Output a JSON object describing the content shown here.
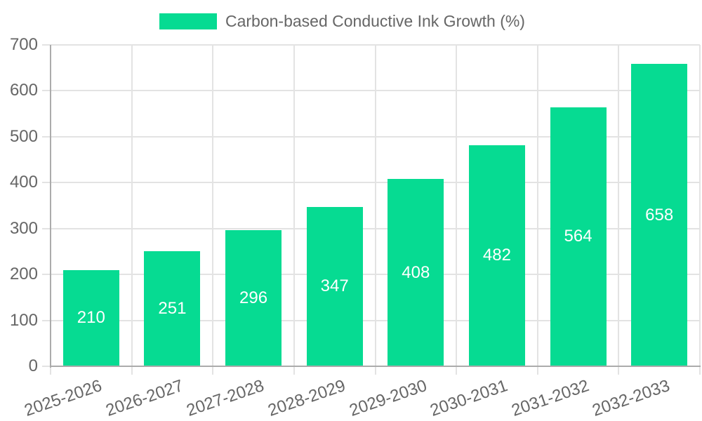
{
  "legend": {
    "label": "Carbon-based Conductive Ink Growth (%)"
  },
  "chart_data": {
    "type": "bar",
    "title": "Carbon-based Conductive Ink Growth (%)",
    "categories": [
      "2025-2026",
      "2026-2027",
      "2027-2028",
      "2028-2029",
      "2029-2030",
      "2030-2031",
      "2031-2032",
      "2032-2033"
    ],
    "values": [
      210,
      251,
      296,
      347,
      408,
      482,
      564,
      658
    ],
    "xlabel": "",
    "ylabel": "",
    "ylim": [
      0,
      700
    ],
    "yticks": [
      0,
      100,
      200,
      300,
      400,
      500,
      600,
      700
    ],
    "grid": true,
    "legend_position": "top",
    "value_labels_inside_bars": true,
    "bar_color": "#06db92",
    "value_label_color": "#ffffff",
    "axis_text_color": "#666666",
    "grid_color": "#e3e3e3",
    "axis_line_color": "#ababab",
    "x_label_rotation_deg": -19
  }
}
